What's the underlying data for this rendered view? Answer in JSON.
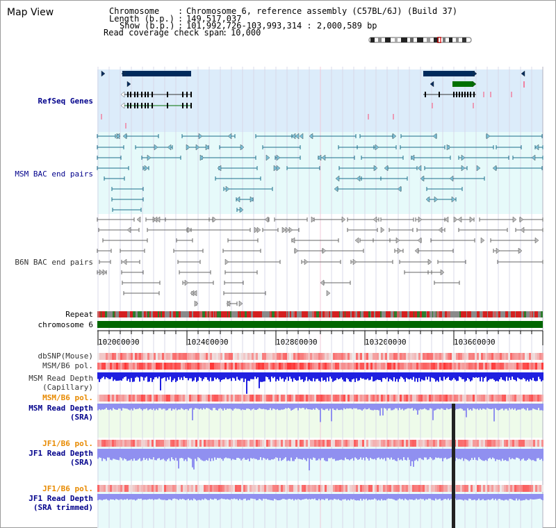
{
  "title": "Map View",
  "info": {
    "chromosome_label": "Chromosome",
    "chromosome_value": "Chromosome 6, reference assembly (C57BL/6J) (Build 37)",
    "length_label": "Length (b.p.)",
    "length_value": "149,517,037",
    "show_label": "Show (b.p.)",
    "show_value": "101,992,726-103,993,314 : 2,000,589 bp",
    "coverage_label": "Read coverage check span",
    "coverage_value": "10,000"
  },
  "tracks": {
    "refseq": "RefSeq Genes",
    "msm_bac": "MSM BAC end pairs",
    "b6n_bac": "B6N BAC end pairs",
    "repeat": "Repeat",
    "chromosome": "chromosome 6",
    "dbsnp": "dbSNP(Mouse)",
    "msm_b6_pol": "MSM/B6 pol.",
    "msm_depth_cap_1": "MSM Read Depth",
    "msm_depth_cap_2": "(Capillary)",
    "msm_b6_pol_2": "MSM/B6 pol.",
    "msm_depth_sra_1": "MSM Read Depth",
    "msm_depth_sra_2": "(SRA)",
    "jf1_b6_pol": "JF1/B6 pol.",
    "jf1_depth_sra_1": "JF1 Read Depth",
    "jf1_depth_sra_2": "(SRA)",
    "jf1_b6_pol_2": "JF1/B6 pol.",
    "jf1_depth_trim_1": "JF1 Read Depth",
    "jf1_depth_trim_2": "(SRA trimmed)"
  },
  "axis_ticks": [
    "102000000",
    "102400000",
    "102800000",
    "103200000",
    "103600000"
  ],
  "colors": {
    "refseq_bg": "#dcecfa",
    "msm_bac_bg": "#e6fafa",
    "gene_navy": "#002a5c",
    "gene_green": "#007000",
    "bac_teal": "#1a6d8a",
    "bac_gray": "#666666",
    "chrom_green": "#006600",
    "depth_blue": "#2020e0",
    "depth_sra_fill": "#9090f0",
    "pol_red": "#e02020"
  }
}
